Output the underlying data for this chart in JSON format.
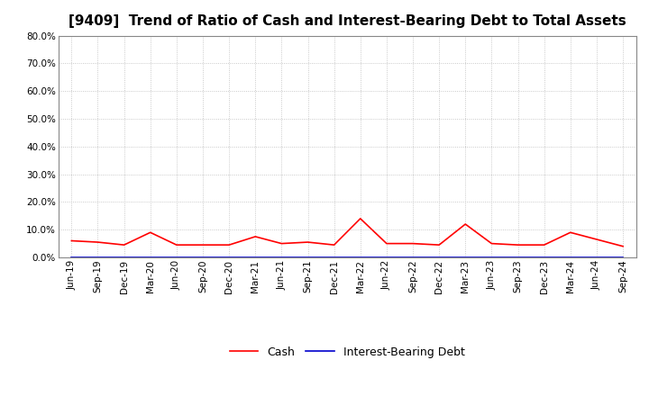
{
  "title": "[9409]  Trend of Ratio of Cash and Interest-Bearing Debt to Total Assets",
  "x_labels": [
    "Jun-19",
    "Sep-19",
    "Dec-19",
    "Mar-20",
    "Jun-20",
    "Sep-20",
    "Dec-20",
    "Mar-21",
    "Jun-21",
    "Sep-21",
    "Dec-21",
    "Mar-22",
    "Jun-22",
    "Sep-22",
    "Dec-22",
    "Mar-23",
    "Jun-23",
    "Sep-23",
    "Dec-23",
    "Mar-24",
    "Jun-24",
    "Sep-24"
  ],
  "cash": [
    6.0,
    5.5,
    4.5,
    9.0,
    4.5,
    4.5,
    4.5,
    7.5,
    5.0,
    5.5,
    4.5,
    14.0,
    5.0,
    5.0,
    4.5,
    12.0,
    5.0,
    4.5,
    4.5,
    9.0,
    6.5,
    4.0
  ],
  "interest_bearing_debt": [
    0.0,
    0.0,
    0.0,
    0.0,
    0.0,
    0.0,
    0.0,
    0.0,
    0.0,
    0.0,
    0.0,
    0.0,
    0.0,
    0.0,
    0.0,
    0.0,
    0.0,
    0.0,
    0.0,
    0.0,
    0.0,
    0.0
  ],
  "cash_color": "#ff0000",
  "debt_color": "#0000cd",
  "ylim": [
    0,
    80
  ],
  "yticks": [
    0,
    10,
    20,
    30,
    40,
    50,
    60,
    70,
    80
  ],
  "background_color": "#ffffff",
  "plot_bg_color": "#ffffff",
  "grid_color": "#bbbbbb",
  "legend_cash": "Cash",
  "legend_debt": "Interest-Bearing Debt",
  "title_fontsize": 11,
  "axis_fontsize": 7.5
}
